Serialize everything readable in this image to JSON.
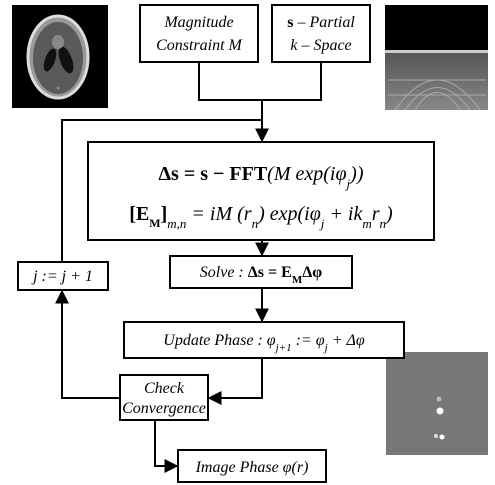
{
  "nodes": {
    "magnitude": {
      "lines": [
        "Magnitude",
        "Constraint M"
      ]
    },
    "partial": {
      "lines": [
        [
          "s",
          " – Partial"
        ],
        "k – Space"
      ]
    },
    "update_eq": {
      "line1": [
        "Δs = s − FFT",
        "(M exp(iφ",
        "j",
        "))"
      ],
      "line2": [
        "[E",
        "M",
        "]",
        "m,n",
        " = iM (r",
        "n",
        ") exp(iφ",
        "j",
        " + ik",
        "m",
        "r",
        "n",
        ")"
      ]
    },
    "solve": {
      "parts": [
        "Solve : ",
        "Δs = E",
        "M",
        "Δφ"
      ]
    },
    "update_phase": {
      "parts": [
        "Update Phase :  φ",
        "j+1",
        " := φ",
        "j",
        " + Δφ"
      ]
    },
    "increment": {
      "label": "j := j + 1"
    },
    "check": {
      "lines": [
        "Check",
        "Convergence"
      ]
    },
    "output": {
      "label": "Image Phase φ(r)"
    }
  }
}
